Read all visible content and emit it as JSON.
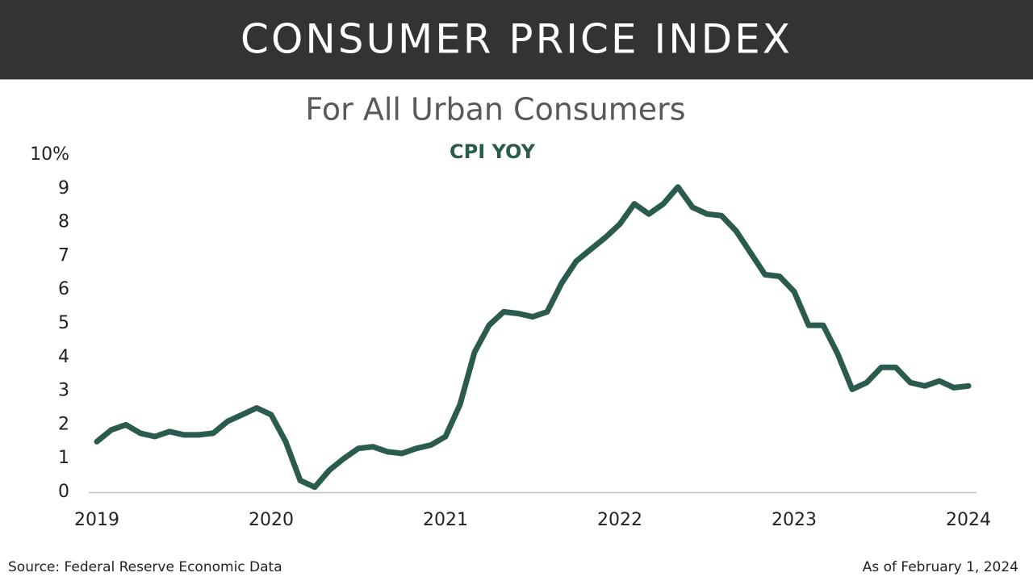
{
  "chart_data": {
    "type": "line",
    "title": "CONSUMER PRICE INDEX",
    "subtitle": "For All Urban Consumers",
    "source": "Source: Federal Reserve Economic Data",
    "date_note": "As of February 1, 2024",
    "categories": [
      "2019",
      null,
      null,
      null,
      null,
      null,
      null,
      null,
      null,
      null,
      null,
      null,
      "2020",
      null,
      null,
      null,
      null,
      null,
      null,
      null,
      null,
      null,
      null,
      null,
      "2021",
      null,
      null,
      null,
      null,
      null,
      null,
      null,
      null,
      null,
      null,
      null,
      "2022",
      null,
      null,
      null,
      null,
      null,
      null,
      null,
      null,
      null,
      null,
      null,
      "2023",
      null,
      null,
      null,
      null,
      null,
      null,
      null,
      null,
      null,
      null,
      null,
      "2024"
    ],
    "series": [
      {
        "name": "CPI YOY",
        "color": "#2b5a4f",
        "values": [
          1.5,
          1.85,
          2.0,
          1.75,
          1.65,
          1.8,
          1.7,
          1.7,
          1.75,
          2.1,
          2.3,
          2.5,
          2.3,
          1.5,
          0.35,
          0.15,
          0.65,
          1.0,
          1.3,
          1.35,
          1.2,
          1.15,
          1.3,
          1.4,
          1.65,
          2.6,
          4.15,
          4.95,
          5.35,
          5.3,
          5.2,
          5.35,
          6.2,
          6.85,
          7.2,
          7.55,
          7.95,
          8.55,
          8.25,
          8.55,
          9.05,
          8.45,
          8.25,
          8.2,
          7.75,
          7.1,
          6.45,
          6.4,
          5.95,
          4.95,
          4.95,
          4.1,
          3.05,
          3.25,
          3.7,
          3.7,
          3.25,
          3.15,
          3.3,
          3.1,
          3.15
        ]
      }
    ],
    "ylim": [
      0,
      10
    ],
    "yticks": [
      0,
      1,
      2,
      3,
      4,
      5,
      6,
      7,
      8,
      9,
      {
        "value": 10,
        "label": "10%"
      }
    ],
    "grid": false
  }
}
